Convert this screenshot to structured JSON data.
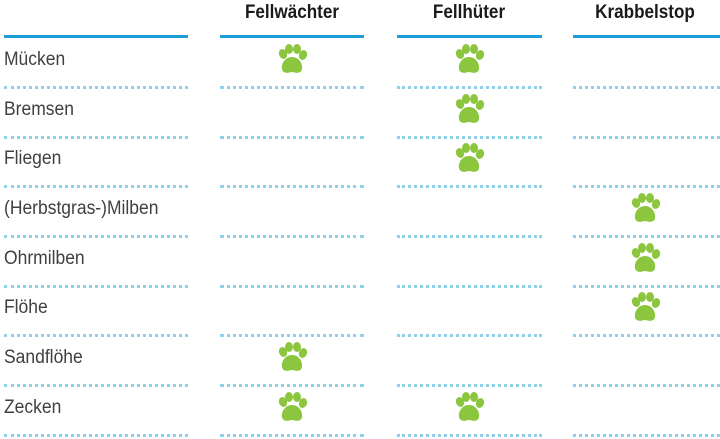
{
  "columns": [
    {
      "id": "fellwaechter",
      "label": "Fellwächter"
    },
    {
      "id": "fellhueter",
      "label": "Fellhüter"
    },
    {
      "id": "krabbelstop",
      "label": "Krabbelstop"
    }
  ],
  "rows": [
    {
      "label": "Mücken",
      "marks": [
        true,
        true,
        false
      ]
    },
    {
      "label": "Bremsen",
      "marks": [
        false,
        true,
        false
      ]
    },
    {
      "label": "Fliegen",
      "marks": [
        false,
        true,
        false
      ]
    },
    {
      "label": "(Herbstgras-)Milben",
      "marks": [
        false,
        false,
        true
      ]
    },
    {
      "label": "Ohrmilben",
      "marks": [
        false,
        false,
        true
      ]
    },
    {
      "label": "Flöhe",
      "marks": [
        false,
        false,
        true
      ]
    },
    {
      "label": "Sandflöhe",
      "marks": [
        true,
        false,
        false
      ]
    },
    {
      "label": "Zecken",
      "marks": [
        true,
        true,
        false
      ]
    }
  ],
  "colors": {
    "accent": "#1a9fd8",
    "dots": "#8fd0ec",
    "paw": "#8cc63f"
  },
  "icons": {
    "mark": "paw-icon"
  }
}
